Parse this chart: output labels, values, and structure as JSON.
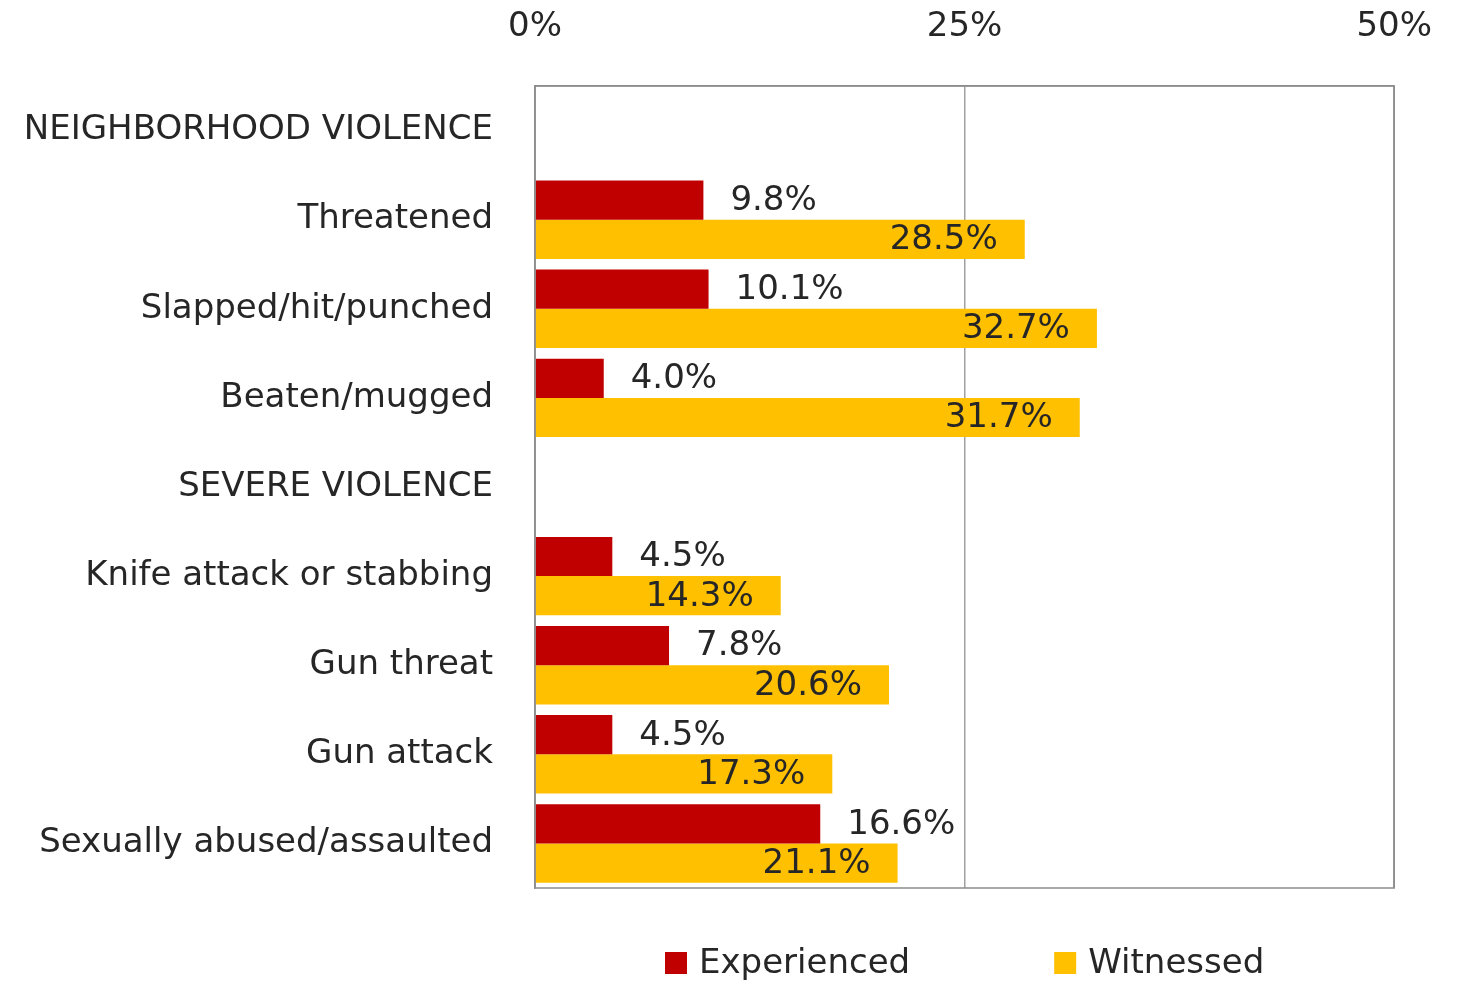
{
  "chart_data": {
    "type": "bar",
    "orientation": "horizontal",
    "categories": [
      "NEIGHBORHOOD VIOLENCE",
      "Threatened",
      "Slapped/hit/punched",
      "Beaten/mugged",
      "SEVERE VIOLENCE",
      "Knife attack or stabbing",
      "Gun threat",
      "Gun attack",
      "Sexually abused/assaulted"
    ],
    "series": [
      {
        "name": "Experienced",
        "color": "#c00000",
        "values": [
          null,
          9.8,
          10.1,
          4.0,
          null,
          4.5,
          7.8,
          4.5,
          16.6
        ],
        "value_labels": [
          null,
          "9.8%",
          "10.1%",
          "4.0%",
          null,
          "4.5%",
          "7.8%",
          "4.5%",
          "16.6%"
        ]
      },
      {
        "name": "Witnessed",
        "color": "#ffc000",
        "values": [
          null,
          28.5,
          32.7,
          31.7,
          null,
          14.3,
          20.6,
          17.3,
          21.1
        ],
        "value_labels": [
          null,
          "28.5%",
          "32.7%",
          "31.7%",
          null,
          "14.3%",
          "20.6%",
          "17.3%",
          "21.1%"
        ]
      }
    ],
    "xlim": [
      0,
      50
    ],
    "xticks": [
      {
        "value": 0,
        "label": "0%"
      },
      {
        "value": 25,
        "label": "25%"
      },
      {
        "value": 50,
        "label": "50%"
      }
    ],
    "grid": "x",
    "legend": "bottom"
  }
}
